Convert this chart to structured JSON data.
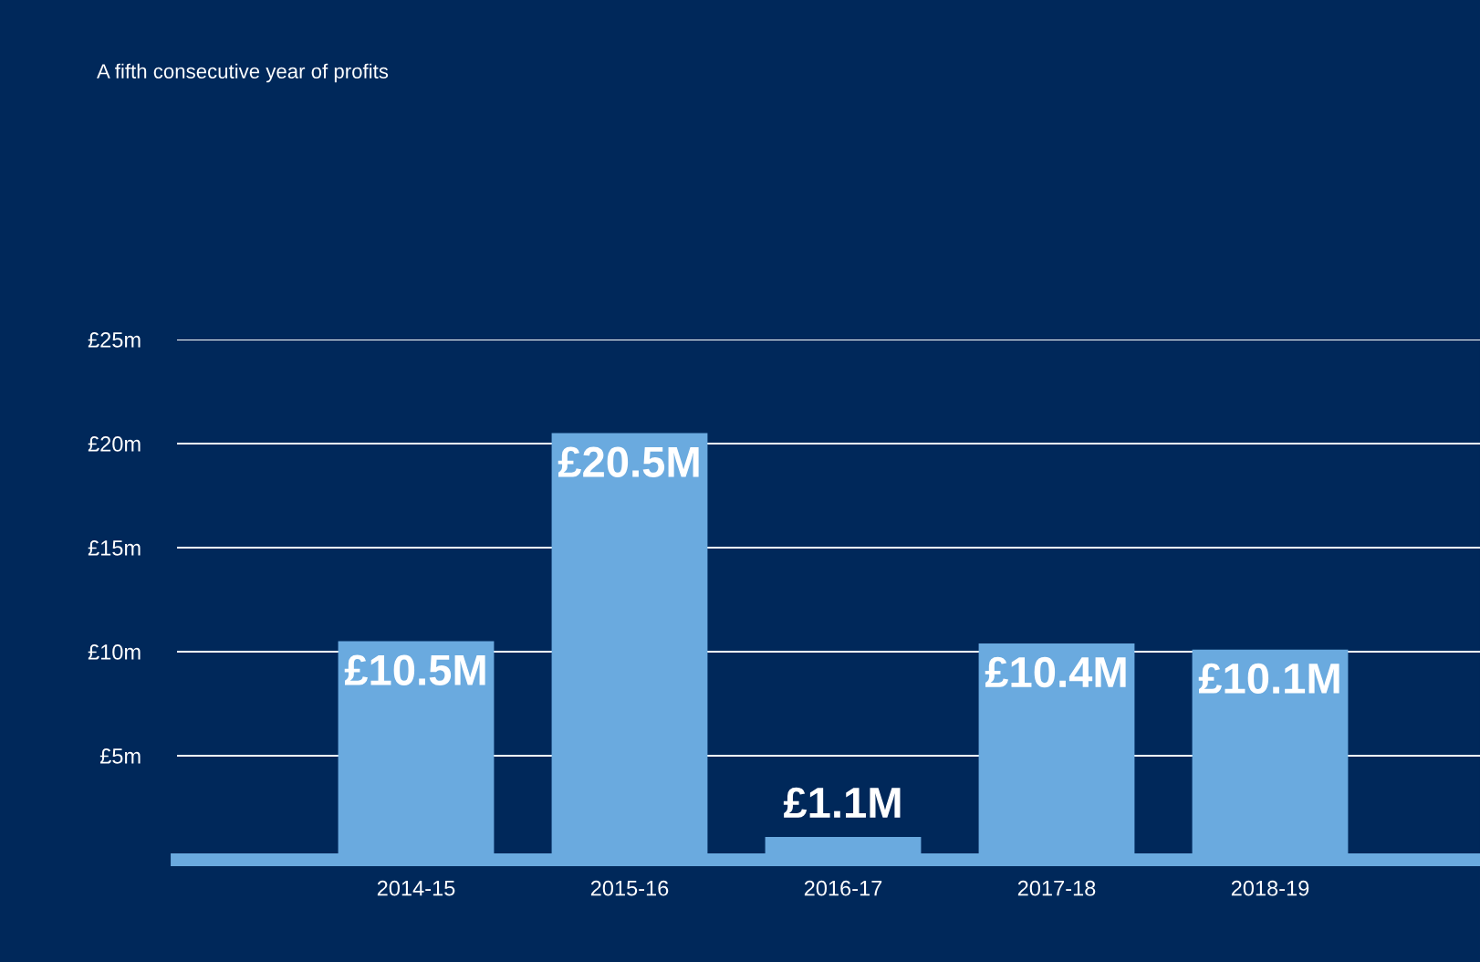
{
  "chart_data": {
    "type": "bar",
    "title": "A fifth consecutive year of profits",
    "categories": [
      "2014-15",
      "2015-16",
      "2016-17",
      "2017-18",
      "2018-19"
    ],
    "values": [
      10.5,
      20.5,
      1.1,
      10.4,
      10.1
    ],
    "value_labels": [
      "£10.5M",
      "£20.5M",
      "£1.1M",
      "£10.4M",
      "£10.1M"
    ],
    "color": "#6aaadf",
    "ylim": [
      0,
      25
    ],
    "yticks": [
      {
        "value": 5,
        "label": "£5m"
      },
      {
        "value": 10,
        "label": "£10m"
      },
      {
        "value": 15,
        "label": "£15m"
      },
      {
        "value": 20,
        "label": "£20m"
      },
      {
        "value": 25,
        "label": "£25m"
      }
    ],
    "grid": "y"
  }
}
